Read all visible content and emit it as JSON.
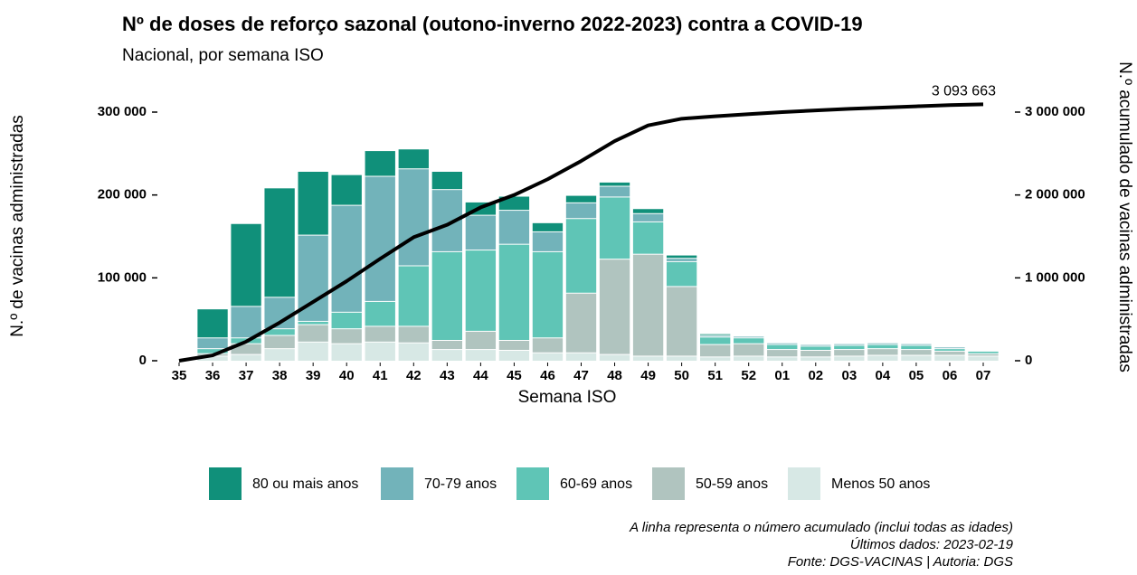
{
  "chart_data": {
    "type": "bar",
    "stacked": true,
    "title": "Nº de doses de reforço sazonal (outono-inverno 2022-2023) contra a COVID-19",
    "subtitle": "Nacional, por semana ISO",
    "x_label": "Semana ISO",
    "y_label": "N.º de vacinas administradas",
    "y2_label": "N.º acumulado de vacinas administradas",
    "notes": [
      "A linha representa o número acumulado (inclui todas as idades)",
      "Últimos dados: 2023-02-19",
      "Fonte: DGS-VACINAS | Autoria: DGS"
    ],
    "categories": [
      "35",
      "36",
      "37",
      "38",
      "39",
      "40",
      "41",
      "42",
      "43",
      "44",
      "45",
      "46",
      "47",
      "48",
      "49",
      "50",
      "51",
      "52",
      "01",
      "02",
      "03",
      "04",
      "05",
      "06",
      "07"
    ],
    "series": [
      {
        "name": "Menos 50 anos",
        "color": "#d7e8e5",
        "values": [
          0,
          5000,
          7000,
          14000,
          22000,
          20000,
          22000,
          21000,
          13000,
          13000,
          12000,
          9000,
          9000,
          7000,
          5000,
          5000,
          4000,
          5000,
          4000,
          4000,
          5000,
          6000,
          6000,
          6000,
          5000
        ]
      },
      {
        "name": "50-59 anos",
        "color": "#b0c4bf",
        "values": [
          0,
          3000,
          13000,
          16000,
          21000,
          18000,
          19000,
          20000,
          11000,
          22000,
          12000,
          18000,
          72000,
          115000,
          123000,
          84000,
          15000,
          15000,
          9000,
          8000,
          8000,
          8000,
          7000,
          5000,
          3000
        ]
      },
      {
        "name": "60-69 anos",
        "color": "#5fc5b6",
        "values": [
          0,
          6000,
          7000,
          8000,
          4000,
          20000,
          30000,
          73000,
          107000,
          98000,
          116000,
          104000,
          90000,
          75000,
          39000,
          30000,
          9000,
          7000,
          6000,
          5000,
          5000,
          5000,
          5000,
          3000,
          3000
        ]
      },
      {
        "name": "70-79 anos",
        "color": "#72b3ba",
        "values": [
          0,
          13000,
          38000,
          38000,
          104000,
          129000,
          151000,
          117000,
          75000,
          42000,
          41000,
          24000,
          19000,
          13000,
          10000,
          4000,
          2000,
          2000,
          2000,
          2000,
          2000,
          2000,
          2000,
          2000,
          1000
        ]
      },
      {
        "name": "80 ou mais anos",
        "color": "#10907a",
        "values": [
          0,
          35000,
          100000,
          132000,
          77000,
          37000,
          31000,
          24000,
          22000,
          16000,
          17000,
          11000,
          9000,
          5000,
          6000,
          4000,
          2000,
          1000,
          1000,
          1000,
          1000,
          1000,
          1000,
          1000,
          1000
        ]
      }
    ],
    "line": {
      "type": "line",
      "axis": "y2",
      "color": "#000000",
      "values": [
        0,
        65000,
        230000,
        460000,
        710000,
        960000,
        1230000,
        1490000,
        1640000,
        1850000,
        2000000,
        2190000,
        2410000,
        2650000,
        2840000,
        2920000,
        2950000,
        2975000,
        3000000,
        3020000,
        3040000,
        3055000,
        3070000,
        3085000,
        3093663
      ],
      "value_labels": [
        null,
        null,
        null,
        null,
        null,
        null,
        null,
        null,
        null,
        null,
        null,
        null,
        null,
        null,
        null,
        null,
        null,
        null,
        null,
        null,
        null,
        null,
        null,
        null,
        "3 093 663"
      ]
    },
    "ylim": [
      0,
      300000
    ],
    "yticks": [
      0,
      {
        "value": 100000,
        "label": "100 000"
      },
      {
        "value": 200000,
        "label": "200 000"
      },
      {
        "value": 300000,
        "label": "300 000"
      }
    ],
    "y2lim": [
      0,
      3000000
    ],
    "y2ticks": [
      0,
      {
        "value": 1000000,
        "label": "1 000 000"
      },
      {
        "value": 2000000,
        "label": "2 000 000"
      },
      {
        "value": 3000000,
        "label": "3 000 000"
      }
    ],
    "legend": "bottom",
    "legend_order": [
      4,
      3,
      2,
      1,
      0
    ]
  }
}
